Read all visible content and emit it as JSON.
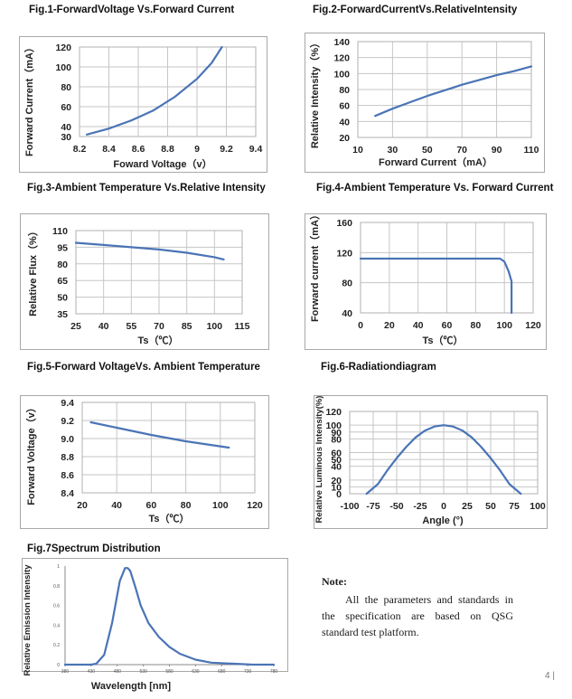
{
  "chart_data": [
    {
      "id": "fig1",
      "type": "line",
      "title": "Fig.1-ForwardVoltage Vs.Forward Current",
      "xlabel": "Foward Voltage（v）",
      "ylabel": "Forward Current（mA）",
      "xlim": [
        8.2,
        9.4
      ],
      "ylim": [
        30,
        120
      ],
      "xticks": [
        "8.2",
        "8.4",
        "8.6",
        "8.8",
        "9",
        "9.2",
        "9.4"
      ],
      "yticks": [
        "30",
        "40",
        "60",
        "80",
        "100",
        "120"
      ],
      "grid": true,
      "series": [
        {
          "x": [
            8.25,
            8.4,
            8.55,
            8.7,
            8.85,
            9.0,
            9.1,
            9.17
          ],
          "y": [
            32,
            38,
            46,
            56,
            70,
            88,
            104,
            120
          ]
        }
      ]
    },
    {
      "id": "fig2",
      "type": "line",
      "title": "Fig.2-ForwardCurrentVs.RelativeIntensity",
      "xlabel": "Forward Current（mA）",
      "ylabel": "Relative Intensity（%）",
      "xlim": [
        10,
        110
      ],
      "ylim": [
        20,
        140
      ],
      "xticks": [
        "10",
        "30",
        "50",
        "70",
        "90",
        "110"
      ],
      "yticks": [
        "20",
        "40",
        "60",
        "80",
        "100",
        "120",
        "140"
      ],
      "grid": true,
      "series": [
        {
          "x": [
            20,
            30,
            40,
            50,
            60,
            70,
            80,
            90,
            100,
            110
          ],
          "y": [
            47,
            56,
            64,
            72,
            79,
            86,
            92,
            98,
            103,
            109
          ]
        }
      ]
    },
    {
      "id": "fig3",
      "type": "line",
      "title": "Fig.3-Ambient Temperature Vs.Relative Intensity",
      "xlabel": "Ts（℃）",
      "ylabel": "Relative Flux（%）",
      "xlim": [
        25,
        115
      ],
      "ylim": [
        35,
        110
      ],
      "xticks": [
        "25",
        "40",
        "55",
        "70",
        "85",
        "100",
        "115"
      ],
      "yticks": [
        "35",
        "50",
        "65",
        "80",
        "95",
        "110"
      ],
      "grid": true,
      "series": [
        {
          "x": [
            25,
            40,
            55,
            70,
            85,
            100,
            105
          ],
          "y": [
            99,
            97,
            95,
            93,
            90,
            86,
            84
          ]
        }
      ]
    },
    {
      "id": "fig4",
      "type": "line",
      "title": "Fig.4-Ambient Temperature Vs. Forward Current",
      "xlabel": "Ts（℃）",
      "ylabel": "Forward current（mA）",
      "xlim": [
        0,
        120
      ],
      "ylim": [
        40,
        160
      ],
      "xticks": [
        "0",
        "20",
        "40",
        "60",
        "80",
        "100",
        "120"
      ],
      "yticks": [
        "40",
        "80",
        "120",
        "160"
      ],
      "grid": true,
      "series": [
        {
          "x": [
            0,
            97,
            100,
            103,
            105,
            105
          ],
          "y": [
            112,
            112,
            108,
            95,
            82,
            0
          ]
        }
      ]
    },
    {
      "id": "fig5",
      "type": "line",
      "title": "Fig.5-Forward VoltageVs. Ambient Temperature",
      "xlabel": "Ts（℃）",
      "ylabel": "Forward Voltage（v）",
      "xlim": [
        20,
        120
      ],
      "ylim": [
        8.4,
        9.4
      ],
      "xticks": [
        "20",
        "40",
        "60",
        "80",
        "100",
        "120"
      ],
      "yticks": [
        "8.4",
        "8.6",
        "8.8",
        "9.0",
        "9.2",
        "9.4"
      ],
      "grid": true,
      "series": [
        {
          "x": [
            25,
            40,
            60,
            80,
            105
          ],
          "y": [
            9.18,
            9.12,
            9.04,
            8.97,
            8.9
          ]
        }
      ]
    },
    {
      "id": "fig6",
      "type": "line",
      "title": "Fig.6-Radiationdiagram",
      "xlabel": "Angle (°)",
      "ylabel": "Relative Luminous Intensity(%)",
      "xlim": [
        -100,
        100
      ],
      "ylim": [
        0,
        120
      ],
      "xticks": [
        "-100",
        "-75",
        "-50",
        "-25",
        "0",
        "25",
        "50",
        "75",
        "100"
      ],
      "yticks": [
        "0",
        "10",
        "20",
        "40",
        "50",
        "60",
        "80",
        "90",
        "100",
        "120"
      ],
      "grid": true,
      "series": [
        {
          "x": [
            -82,
            -70,
            -60,
            -50,
            -40,
            -30,
            -20,
            -10,
            0,
            10,
            20,
            30,
            40,
            50,
            60,
            70,
            82
          ],
          "y": [
            0,
            14,
            34,
            52,
            68,
            82,
            92,
            98,
            100,
            98,
            92,
            82,
            68,
            52,
            34,
            14,
            0
          ]
        }
      ]
    },
    {
      "id": "fig7",
      "type": "line",
      "title": "Fig.7Spectrum Distribution",
      "xlabel": "Wavelength [nm]",
      "ylabel": "Relative Emission Intensity",
      "xlim": [
        380,
        780
      ],
      "ylim": [
        0,
        1
      ],
      "xticks": [
        "380",
        "430",
        "480",
        "530",
        "580",
        "630",
        "680",
        "730",
        "780"
      ],
      "yticks": [
        "0",
        "0.2",
        "0.4",
        "0.6",
        "0.8",
        "1"
      ],
      "grid": false,
      "series": [
        {
          "x": [
            380,
            430,
            440,
            455,
            470,
            485,
            495,
            500,
            505,
            515,
            525,
            540,
            560,
            580,
            600,
            630,
            660,
            700,
            740,
            780
          ],
          "y": [
            0,
            0,
            0.01,
            0.1,
            0.42,
            0.85,
            0.98,
            0.98,
            0.95,
            0.78,
            0.6,
            0.42,
            0.28,
            0.18,
            0.11,
            0.05,
            0.02,
            0.01,
            0,
            0
          ]
        }
      ]
    }
  ],
  "note": {
    "title": "Note:",
    "text": "All the parameters and standards in the specification are based on QSG standard test platform."
  },
  "page_number": "4",
  "colors": {
    "series": "#4a74b6",
    "grid": "#c6c6c6",
    "frame": "#a8a8a8"
  }
}
